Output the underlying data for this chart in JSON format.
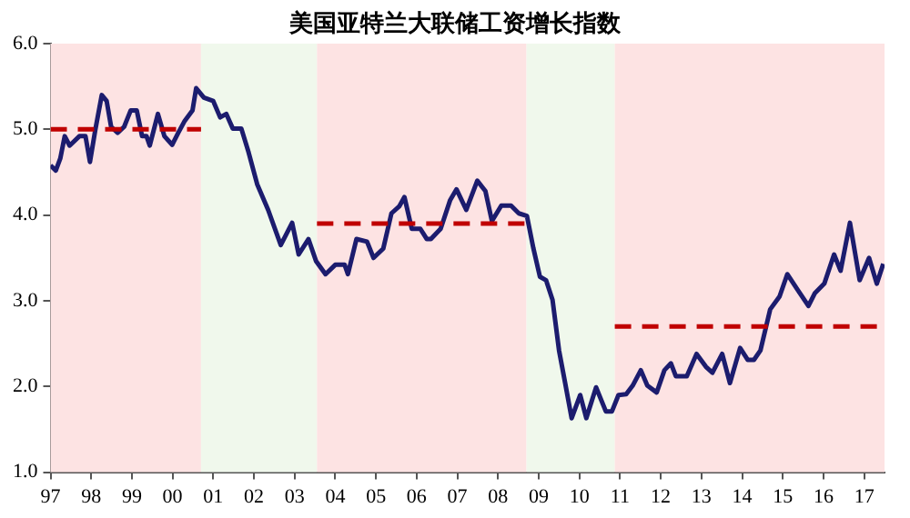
{
  "chart_data": {
    "type": "line",
    "title": "美国亚特兰大联储工资增长指数",
    "xlim": [
      1997,
      2017.5
    ],
    "xticks": [
      {
        "value": 1997,
        "label": "97"
      },
      {
        "value": 1998,
        "label": "98"
      },
      {
        "value": 1999,
        "label": "99"
      },
      {
        "value": 2000,
        "label": "00"
      },
      {
        "value": 2001,
        "label": "01"
      },
      {
        "value": 2002,
        "label": "02"
      },
      {
        "value": 2003,
        "label": "03"
      },
      {
        "value": 2004,
        "label": "04"
      },
      {
        "value": 2005,
        "label": "05"
      },
      {
        "value": 2006,
        "label": "06"
      },
      {
        "value": 2007,
        "label": "07"
      },
      {
        "value": 2008,
        "label": "08"
      },
      {
        "value": 2009,
        "label": "09"
      },
      {
        "value": 2010,
        "label": "10"
      },
      {
        "value": 2011,
        "label": "11"
      },
      {
        "value": 2012,
        "label": "12"
      },
      {
        "value": 2013,
        "label": "13"
      },
      {
        "value": 2014,
        "label": "14"
      },
      {
        "value": 2015,
        "label": "15"
      },
      {
        "value": 2016,
        "label": "16"
      },
      {
        "value": 2017,
        "label": "17"
      }
    ],
    "ylim": [
      1,
      6
    ],
    "yticks": [
      {
        "value": 1,
        "label": "1.0"
      },
      {
        "value": 2,
        "label": "2.0"
      },
      {
        "value": 3,
        "label": "3.0"
      },
      {
        "value": 4,
        "label": "4.0"
      },
      {
        "value": 5,
        "label": "5.0"
      },
      {
        "value": 6,
        "label": "6.0"
      }
    ],
    "grid": false,
    "legend": false,
    "marker": "none",
    "bands": [
      {
        "axis": "x",
        "from": 1997,
        "to": 2000.7,
        "color": "#fde3e3"
      },
      {
        "axis": "x",
        "from": 2000.7,
        "to": 2003.55,
        "color": "#f0f8ec"
      },
      {
        "axis": "x",
        "from": 2003.55,
        "to": 2008.7,
        "color": "#fde3e3"
      },
      {
        "axis": "x",
        "from": 2008.7,
        "to": 2010.87,
        "color": "#f0f8ec"
      },
      {
        "axis": "x",
        "from": 2010.87,
        "to": 2017.5,
        "color": "#fde3e3"
      }
    ],
    "series": [
      {
        "color": "#1c1c6e",
        "line_style": "solid",
        "x": [
          1997.0,
          1997.13,
          1997.24,
          1997.35,
          1997.47,
          1997.71,
          1997.86,
          1997.97,
          1998.1,
          1998.26,
          1998.38,
          1998.49,
          1998.65,
          1998.81,
          1998.97,
          1999.12,
          1999.25,
          1999.36,
          1999.44,
          1999.64,
          1999.8,
          1999.99,
          2000.14,
          2000.3,
          2000.49,
          2000.58,
          2000.77,
          2001.0,
          2001.17,
          2001.32,
          2001.48,
          2001.69,
          2001.87,
          2002.08,
          2002.35,
          2002.66,
          2002.94,
          2003.1,
          2003.34,
          2003.53,
          2003.76,
          2004.0,
          2004.23,
          2004.31,
          2004.52,
          2004.78,
          2004.94,
          2005.18,
          2005.38,
          2005.57,
          2005.7,
          2005.88,
          2006.09,
          2006.25,
          2006.35,
          2006.59,
          2006.82,
          2006.98,
          2007.22,
          2007.49,
          2007.69,
          2007.85,
          2008.08,
          2008.32,
          2008.51,
          2008.71,
          2008.87,
          2009.03,
          2009.18,
          2009.34,
          2009.5,
          2009.65,
          2009.81,
          2010.02,
          2010.17,
          2010.41,
          2010.65,
          2010.8,
          2010.96,
          2011.15,
          2011.31,
          2011.51,
          2011.67,
          2011.9,
          2012.09,
          2012.25,
          2012.37,
          2012.64,
          2012.88,
          2013.11,
          2013.27,
          2013.51,
          2013.7,
          2013.95,
          2014.14,
          2014.29,
          2014.45,
          2014.69,
          2014.92,
          2015.11,
          2015.36,
          2015.63,
          2015.79,
          2016.02,
          2016.26,
          2016.42,
          2016.65,
          2016.89,
          2017.12,
          2017.31,
          2017.47
        ],
        "values": [
          4.58,
          4.52,
          4.66,
          4.92,
          4.81,
          4.92,
          4.92,
          4.62,
          4.99,
          5.4,
          5.33,
          5.03,
          4.96,
          5.03,
          5.22,
          5.22,
          4.92,
          4.92,
          4.81,
          5.18,
          4.92,
          4.82,
          4.96,
          5.1,
          5.22,
          5.48,
          5.37,
          5.33,
          5.14,
          5.18,
          5.01,
          5.01,
          4.73,
          4.36,
          4.06,
          3.65,
          3.91,
          3.54,
          3.72,
          3.46,
          3.31,
          3.42,
          3.42,
          3.31,
          3.72,
          3.69,
          3.5,
          3.61,
          4.02,
          4.1,
          4.21,
          3.84,
          3.84,
          3.72,
          3.72,
          3.84,
          4.17,
          4.3,
          4.06,
          4.4,
          4.28,
          3.93,
          4.11,
          4.11,
          4.02,
          3.99,
          3.61,
          3.28,
          3.24,
          3.01,
          2.42,
          2.04,
          1.63,
          1.9,
          1.63,
          1.99,
          1.71,
          1.71,
          1.9,
          1.91,
          2.01,
          2.19,
          2.01,
          1.93,
          2.19,
          2.27,
          2.12,
          2.12,
          2.38,
          2.23,
          2.16,
          2.38,
          2.04,
          2.45,
          2.31,
          2.31,
          2.42,
          2.9,
          3.05,
          3.31,
          3.13,
          2.94,
          3.09,
          3.2,
          3.54,
          3.35,
          3.91,
          3.24,
          3.5,
          3.2,
          3.43
        ]
      },
      {
        "type": "line",
        "color": "#c00000",
        "line_style": "dashed",
        "x": [
          1997,
          2000.7
        ],
        "values": [
          5.0,
          5.0
        ]
      },
      {
        "type": "line",
        "color": "#c00000",
        "line_style": "dashed",
        "x": [
          2003.55,
          2008.7
        ],
        "values": [
          3.9,
          3.9
        ]
      },
      {
        "type": "line",
        "color": "#c00000",
        "line_style": "dashed",
        "x": [
          2010.87,
          2017.5
        ],
        "values": [
          2.7,
          2.7
        ]
      }
    ]
  }
}
